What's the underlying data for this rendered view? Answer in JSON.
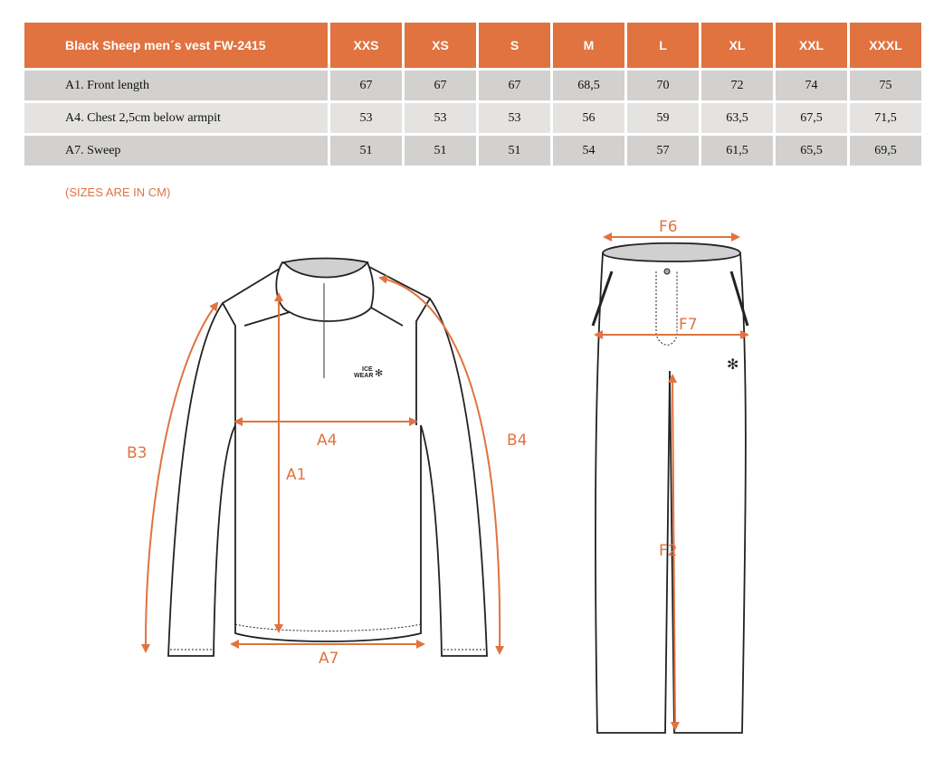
{
  "table": {
    "title": "Black Sheep men´s vest FW-2415",
    "sizes": [
      "XXS",
      "XS",
      "S",
      "M",
      "L",
      "XL",
      "XXL",
      "XXXL"
    ],
    "rows": [
      {
        "label": "A1. Front length",
        "values": [
          "67",
          "67",
          "67",
          "68,5",
          "70",
          "72",
          "74",
          "75"
        ]
      },
      {
        "label": "A4. Chest 2,5cm below armpit",
        "values": [
          "53",
          "53",
          "53",
          "56",
          "59",
          "63,5",
          "67,5",
          "71,5"
        ]
      },
      {
        "label": "A7. Sweep",
        "values": [
          "51",
          "51",
          "51",
          "54",
          "57",
          "61,5",
          "65,5",
          "69,5"
        ]
      }
    ]
  },
  "note": "(SIZES ARE IN CM)",
  "diagram": {
    "jacket_labels": {
      "a1": "A1",
      "a4": "A4",
      "a7": "A7",
      "b3": "B3",
      "b4": "B4"
    },
    "pants_labels": {
      "f2": "F2",
      "f6": "F6",
      "f7": "F7"
    },
    "logo": "ICE WEAR",
    "accent": "#e07340"
  }
}
